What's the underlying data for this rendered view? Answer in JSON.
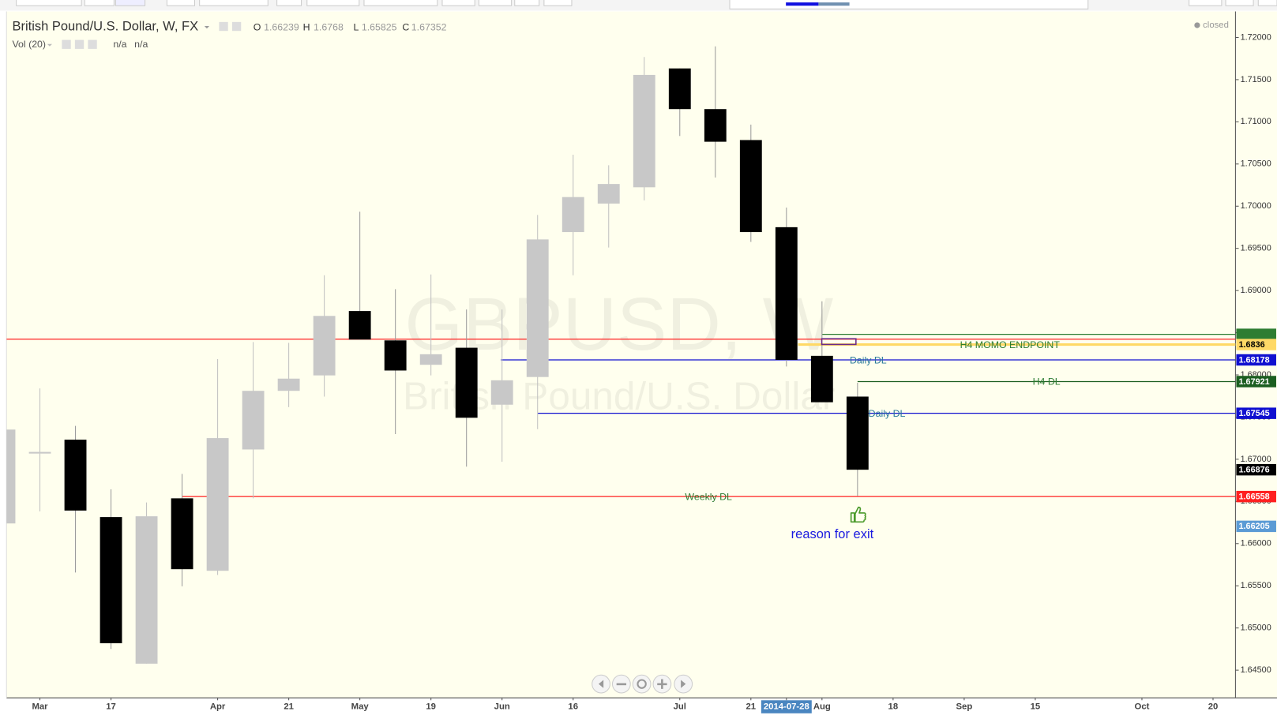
{
  "chart_data": {
    "type": "candlestick",
    "title": "British Pound/U.S. Dollar, W, FX",
    "ohlc_labels": [
      "O",
      "H",
      "L",
      "C"
    ],
    "indicator": {
      "name": "Vol (20)",
      "values": [
        "n/a",
        "n/a"
      ]
    },
    "status": "closed",
    "watermark": [
      "GBPUSD, W",
      "British Pound/U.S. Dollar"
    ],
    "x": [
      null,
      "Mar",
      null,
      "17",
      null,
      null,
      "Apr",
      null,
      "21",
      null,
      "May",
      null,
      "19",
      null,
      "Jun",
      null,
      "16",
      null,
      null,
      "Jul",
      null,
      "21",
      "2014-07-28",
      "Aug",
      null,
      "18",
      null,
      "Sep",
      null,
      "15",
      null,
      null,
      "Oct",
      null,
      "20"
    ],
    "open": [
      1.66239,
      1.67087,
      1.67232,
      1.66315,
      1.64577,
      1.66537,
      1.65678,
      1.67116,
      1.67811,
      1.67994,
      1.68757,
      1.68409,
      1.6812,
      1.68322,
      1.67647,
      1.67975,
      1.69693,
      1.70031,
      1.70224,
      1.71633,
      1.71151,
      1.70784,
      1.69751,
      1.68226,
      1.67743,
      null,
      null,
      null,
      null,
      null,
      null,
      null,
      null,
      null,
      null
    ],
    "high": [
      1.6768,
      1.6784,
      1.67396,
      1.66643,
      1.66488,
      1.66826,
      1.68187,
      1.6839,
      1.6838,
      1.69181,
      1.69934,
      1.69017,
      1.69191,
      1.68776,
      1.68776,
      1.69896,
      1.7061,
      1.70485,
      1.71768,
      1.71633,
      1.71894,
      1.70967,
      1.69983,
      1.68873,
      1.67907,
      null,
      null,
      null,
      null,
      null,
      null,
      null,
      null,
      null,
      null
    ],
    "low": [
      1.65825,
      1.66382,
      1.65658,
      1.64751,
      1.64577,
      1.65494,
      1.65629,
      1.66537,
      1.67618,
      1.67743,
      1.68419,
      1.67299,
      1.67994,
      1.66913,
      1.66971,
      1.67357,
      1.69181,
      1.6951,
      1.70069,
      1.70832,
      1.7034,
      1.69577,
      1.681,
      1.67676,
      1.66566,
      null,
      null,
      null,
      null,
      null,
      null,
      null,
      null,
      null,
      null
    ],
    "close": [
      1.67352,
      1.67087,
      1.66392,
      1.64819,
      1.66324,
      1.65697,
      1.67251,
      1.67811,
      1.67956,
      1.68699,
      1.68419,
      1.68052,
      1.68245,
      1.67492,
      1.67936,
      1.69606,
      1.70108,
      1.70263,
      1.71556,
      1.71151,
      1.70764,
      1.69693,
      1.68178,
      1.67676,
      1.66876,
      null,
      null,
      null,
      null,
      null,
      null,
      null,
      null,
      null,
      null
    ],
    "up_color": "#c8c8c8",
    "down_color": "#000000",
    "ylim": [
      1.64172,
      1.72309
    ],
    "yticks": [
      {
        "value": 1.645,
        "label": "1.64500"
      },
      {
        "value": 1.65,
        "label": "1.65000"
      },
      {
        "value": 1.655,
        "label": "1.65500"
      },
      {
        "value": 1.66,
        "label": "1.66000"
      },
      {
        "value": 1.665,
        "label": "1.66500"
      },
      {
        "value": 1.67,
        "label": "1.67000"
      },
      {
        "value": 1.675,
        "label": "1.67500"
      },
      {
        "value": 1.68,
        "label": "1.68000"
      },
      {
        "value": 1.685,
        "label": "1.68500"
      },
      {
        "value": 1.69,
        "label": "1.69000"
      },
      {
        "value": 1.695,
        "label": "1.69500"
      },
      {
        "value": 1.7,
        "label": "1.70000"
      },
      {
        "value": 1.705,
        "label": "1.70500"
      },
      {
        "value": 1.71,
        "label": "1.71000"
      },
      {
        "value": 1.715,
        "label": "1.71500"
      },
      {
        "value": 1.72,
        "label": "1.72000"
      }
    ],
    "grid": false,
    "levels": [
      {
        "price": 1.68424,
        "color": "#ff2020"
      },
      {
        "price": 1.68481,
        "color": "#2e7d32"
      },
      {
        "price": 1.6836,
        "color": "#ffd966",
        "label": "H4 MOMO ENDPOINT",
        "label_color": "#2e7d32",
        "badge_text": "#000000"
      },
      {
        "price": 1.68178,
        "color": "#1010d0",
        "label": "Daily DL",
        "label_color": "#2a7a9a",
        "badge_text": "#ffffff"
      },
      {
        "price": 1.67921,
        "color": "#1b5e20",
        "label": "H4 DL",
        "label_color": "#2e7d32",
        "badge_text": "#ffffff"
      },
      {
        "price": 1.67545,
        "color": "#1010d0",
        "label": "Daily DL",
        "label_color": "#2a7a9a",
        "badge_text": "#ffffff"
      },
      {
        "price": 1.66558,
        "color": "#ff2020",
        "label": "Weekly DL",
        "label_color": "#2e7d32",
        "badge_text": "#ffffff"
      }
    ],
    "price_labels": [
      {
        "value": 1.66876,
        "color": "#000000"
      },
      {
        "value": 1.66205,
        "color": "#5b9bd5"
      }
    ],
    "annotation": "reason for exit"
  }
}
